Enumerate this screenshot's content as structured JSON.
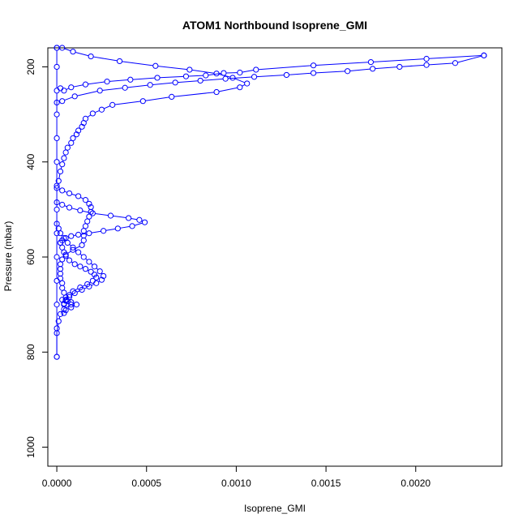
{
  "chart_data": {
    "type": "scatter",
    "title": "ATOM1 Northbound Isoprene_GMI",
    "xlabel": "Isoprene_GMI",
    "ylabel": "Pressure (mbar)",
    "xlim": [
      -5e-05,
      0.00248
    ],
    "ylim": [
      1040,
      160
    ],
    "y_reversed": true,
    "grid": false,
    "legend": "none",
    "colors": {
      "series": "#0000ff",
      "axis": "#000000",
      "background": "#ffffff"
    },
    "x_ticks": [
      "0.0000",
      "0.0005",
      "0.0010",
      "0.0015",
      "0.0020"
    ],
    "x_tick_values": [
      0,
      0.0005,
      0.001,
      0.0015,
      0.002
    ],
    "y_ticks": [
      "200",
      "400",
      "600",
      "800",
      "1000"
    ],
    "y_tick_values": [
      200,
      400,
      600,
      800,
      1000
    ],
    "series": [
      {
        "points": [
          [
            0.0,
            160
          ],
          [
            3e-05,
            160
          ],
          [
            9e-05,
            168
          ],
          [
            0.00019,
            178
          ],
          [
            0.00035,
            188
          ],
          [
            0.00055,
            198
          ],
          [
            0.00074,
            206
          ],
          [
            0.00089,
            214
          ],
          [
            0.00098,
            223
          ],
          [
            0.00106,
            235
          ],
          [
            0.00102,
            243
          ],
          [
            0.00089,
            253
          ],
          [
            0.00064,
            263
          ],
          [
            0.00048,
            272
          ],
          [
            0.00031,
            280
          ],
          [
            0.00025,
            290
          ],
          [
            0.0002,
            298
          ],
          [
            0.00016,
            309
          ],
          [
            0.00015,
            318
          ],
          [
            0.00014,
            326
          ],
          [
            0.00012,
            334
          ],
          [
            0.00011,
            342
          ],
          [
            9e-05,
            350
          ],
          [
            8e-05,
            360
          ],
          [
            6e-05,
            370
          ],
          [
            5e-05,
            380
          ],
          [
            4e-05,
            392
          ],
          [
            3e-05,
            405
          ],
          [
            2e-05,
            420
          ],
          [
            1e-05,
            440
          ],
          [
            0.0,
            455
          ],
          [
            3e-05,
            460
          ],
          [
            7e-05,
            466
          ],
          [
            0.00012,
            472
          ],
          [
            0.00016,
            480
          ],
          [
            0.00018,
            488
          ],
          [
            0.00019,
            495
          ],
          [
            0.00019,
            505
          ],
          [
            0.00018,
            515
          ],
          [
            0.00017,
            525
          ],
          [
            0.00016,
            535
          ],
          [
            0.00015,
            545
          ],
          [
            0.00015,
            555
          ],
          [
            0.00015,
            565
          ],
          [
            0.00014,
            575
          ],
          [
            9e-05,
            585
          ],
          [
            5e-05,
            595
          ],
          [
            3e-05,
            605
          ],
          [
            2e-05,
            615
          ],
          [
            2e-05,
            625
          ],
          [
            2e-05,
            635
          ],
          [
            2e-05,
            645
          ],
          [
            3e-05,
            655
          ],
          [
            3e-05,
            665
          ],
          [
            4e-05,
            675
          ],
          [
            5e-05,
            685
          ],
          [
            6e-05,
            693
          ],
          [
            8e-05,
            700
          ],
          [
            4e-05,
            710
          ],
          [
            2e-05,
            720
          ],
          [
            1e-05,
            735
          ],
          [
            0.0,
            760
          ],
          [
            0.0,
            810
          ]
        ]
      },
      {
        "points": [
          [
            0.0,
            275
          ],
          [
            3e-05,
            272
          ],
          [
            0.0001,
            262
          ],
          [
            0.00024,
            250
          ],
          [
            0.00038,
            244
          ],
          [
            0.00052,
            238
          ],
          [
            0.00066,
            233
          ],
          [
            0.0008,
            229
          ],
          [
            0.00094,
            225
          ],
          [
            0.0011,
            221
          ],
          [
            0.00128,
            217
          ],
          [
            0.00143,
            213
          ],
          [
            0.00162,
            209
          ],
          [
            0.00176,
            204
          ],
          [
            0.00191,
            200
          ],
          [
            0.00206,
            196
          ],
          [
            0.00222,
            192
          ],
          [
            0.00238,
            176
          ]
        ]
      },
      {
        "points": [
          [
            2e-05,
            245
          ],
          [
            4e-05,
            250
          ],
          [
            8e-05,
            243
          ],
          [
            0.00016,
            237
          ],
          [
            0.00028,
            231
          ],
          [
            0.00041,
            227
          ],
          [
            0.00056,
            223
          ],
          [
            0.00072,
            220
          ],
          [
            0.00083,
            218
          ],
          [
            0.00093,
            213
          ],
          [
            0.00102,
            212
          ],
          [
            0.00111,
            206
          ],
          [
            0.00143,
            197
          ],
          [
            0.00175,
            190
          ],
          [
            0.00206,
            183
          ],
          [
            0.00238,
            176
          ]
        ]
      },
      {
        "points": [
          [
            0.0,
            485
          ],
          [
            3e-05,
            490
          ],
          [
            7e-05,
            496
          ],
          [
            0.00013,
            502
          ],
          [
            0.0002,
            508
          ],
          [
            0.0003,
            513
          ],
          [
            0.0004,
            518
          ],
          [
            0.00046,
            522
          ],
          [
            0.00049,
            527
          ],
          [
            0.00042,
            535
          ],
          [
            0.00034,
            540
          ],
          [
            0.00026,
            545
          ],
          [
            0.00018,
            550
          ],
          [
            0.00012,
            553
          ],
          [
            8e-05,
            556
          ],
          [
            5e-05,
            560
          ],
          [
            3e-05,
            565
          ],
          [
            2e-05,
            570
          ]
        ]
      },
      {
        "points": [
          [
            0.0,
            530
          ],
          [
            1e-05,
            540
          ],
          [
            2e-05,
            550
          ],
          [
            4e-05,
            560
          ],
          [
            6e-05,
            570
          ],
          [
            9e-05,
            580
          ],
          [
            0.00012,
            590
          ],
          [
            0.00015,
            600
          ],
          [
            0.00018,
            610
          ],
          [
            0.00021,
            620
          ],
          [
            0.00024,
            630
          ],
          [
            0.00026,
            640
          ],
          [
            0.00025,
            648
          ],
          [
            0.00022,
            655
          ],
          [
            0.00018,
            662
          ],
          [
            0.00014,
            669
          ],
          [
            0.0001,
            676
          ],
          [
            7e-05,
            684
          ],
          [
            5e-05,
            692
          ],
          [
            4e-05,
            700
          ]
        ]
      },
      {
        "points": [
          [
            2e-05,
            570
          ],
          [
            3e-05,
            580
          ],
          [
            4e-05,
            590
          ],
          [
            5e-05,
            598
          ],
          [
            7e-05,
            607
          ],
          [
            0.0001,
            615
          ],
          [
            0.00013,
            620
          ],
          [
            0.00016,
            625
          ],
          [
            0.00019,
            631
          ],
          [
            0.00021,
            637
          ],
          [
            0.00022,
            643
          ],
          [
            0.0002,
            650
          ],
          [
            0.00017,
            657
          ],
          [
            0.00013,
            664
          ],
          [
            9e-05,
            672
          ],
          [
            7e-05,
            680
          ],
          [
            5e-05,
            690
          ],
          [
            4e-05,
            698
          ]
        ]
      },
      {
        "points": [
          [
            3e-05,
            690
          ],
          [
            5e-05,
            692
          ],
          [
            8e-05,
            695
          ],
          [
            0.00011,
            700
          ],
          [
            8e-05,
            706
          ],
          [
            5e-05,
            712
          ],
          [
            4e-05,
            718
          ]
        ]
      },
      {
        "points": [
          [
            0.0,
            160
          ],
          [
            0.0,
            200
          ],
          [
            0.0,
            250
          ],
          [
            0.0,
            300
          ],
          [
            0.0,
            350
          ],
          [
            0.0,
            400
          ],
          [
            0.0,
            450
          ],
          [
            0.0,
            500
          ],
          [
            0.0,
            550
          ],
          [
            0.0,
            600
          ],
          [
            0.0,
            650
          ],
          [
            0.0,
            700
          ],
          [
            0.0,
            750
          ],
          [
            0.0,
            810
          ]
        ]
      }
    ]
  }
}
